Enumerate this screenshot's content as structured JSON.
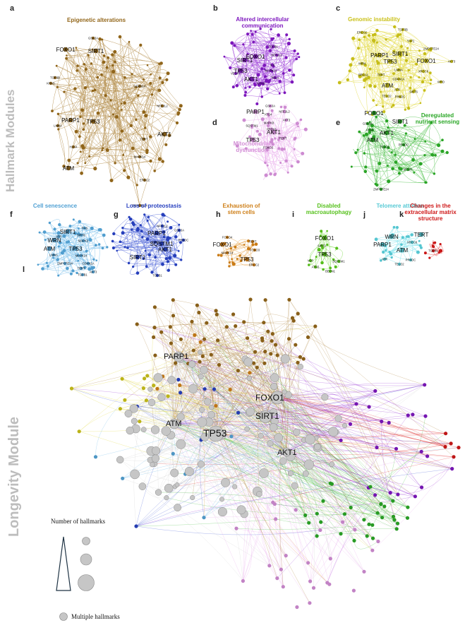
{
  "side_labels": {
    "hallmark": "Hallmark Modules",
    "longevity": "Longevity Module"
  },
  "colors": {
    "epigenetic": "#a0701d",
    "communication": "#8a1ad0",
    "genomic": "#dcd21c",
    "mitochondrial": "#e49ae8",
    "nutrient": "#2fb62a",
    "senescence": "#5ab0e6",
    "proteostasis": "#2a46d0",
    "stem_cells": "#e08a1a",
    "autophagy": "#5fd21f",
    "telomere": "#60dce8",
    "ecm": "#e01a1a",
    "multiple": "#c6c6c6",
    "multiple_edge": "#d7d7d7"
  },
  "panels": [
    {
      "letter": "a",
      "title": [
        "Epigenetic alterations"
      ],
      "color_key": "epigenetic",
      "big_labels": [
        "FOXO1",
        "SIRT1",
        "PARP1",
        "TP53",
        "ATM",
        "AKT1"
      ],
      "small_labels": [
        "GSK3A",
        "NFE2L2",
        "TOP3B",
        "ERCC2",
        "ZMPSTE24",
        "MAPK14",
        "CDKN1A",
        "KRAS",
        "TERT",
        "H2AX",
        "LMNA"
      ]
    },
    {
      "letter": "b",
      "title": [
        "Altered intercellular",
        "communication"
      ],
      "color_key": "communication",
      "big_labels": [
        "SIRT1",
        "FOXO1",
        "TP53",
        "AKT1"
      ],
      "small_labels": [
        "TGFB1",
        "NFE2L2",
        "IL6",
        "MAPK14",
        "VEGFA",
        "KRAS",
        "RELA"
      ]
    },
    {
      "letter": "c",
      "title": [
        "Genomic instability"
      ],
      "color_key": "genomic",
      "big_labels": [
        "PARP1",
        "SIRT1",
        "TP53",
        "FOXO1",
        "ATM"
      ],
      "small_labels": [
        "ERCC2",
        "TOP3B",
        "YAP1",
        "ZMPSTE24",
        "AKT3",
        "WRN",
        "BRCA1",
        "LMNA",
        "CDKN1A",
        "XRCC6",
        "WRD",
        "TERT",
        "ATR",
        "PRKDC",
        "SIRT6",
        "TELO2"
      ]
    },
    {
      "letter": "d",
      "title": [
        "Mitochondrial",
        "dysfunction"
      ],
      "color_key": "mitochondrial",
      "big_labels": [
        "PARP1",
        "AKT1",
        "TP53"
      ],
      "small_labels": [
        "GSK3A",
        "NFE2L2",
        "AKT3",
        "SQSTM1",
        "PRDX1",
        "TERT",
        "FOXO3",
        "MAPK8",
        "ATG4"
      ]
    },
    {
      "letter": "e",
      "title": [
        "Deregulated",
        "nutrient sensing"
      ],
      "color_key": "nutrient",
      "big_labels": [
        "FOXO1",
        "SIRT1",
        "AKT1",
        "ATM"
      ],
      "small_labels": [
        "GSK3A",
        "ATG5",
        "TELO2",
        "ZMPSTE24",
        "PRKDC",
        "MTOR"
      ]
    },
    {
      "letter": "f",
      "title": [
        "Cell senescence"
      ],
      "color_key": "senescence",
      "big_labels": [
        "SIRT1",
        "WRN",
        "ATM",
        "TP53"
      ],
      "small_labels": [
        "RAS",
        "ATR",
        "SIRT6",
        "MAPK3",
        "LMNA",
        "MAPK14",
        "CDKN1A",
        "ZMPSTE24",
        "TERT",
        "TGFB1",
        "AKT3"
      ]
    },
    {
      "letter": "g",
      "title": [
        "Loss of proteostasis"
      ],
      "color_key": "proteostasis",
      "big_labels": [
        "PARP1",
        "SQSTM1",
        "SIRT1",
        "AKT1"
      ],
      "small_labels": [
        "NFE2L2",
        "GSK3A",
        "ATG5",
        "PRKDC",
        "TGFB1"
      ]
    },
    {
      "letter": "h",
      "title": [
        "Exhaustion of",
        "stem cells"
      ],
      "color_key": "stem_cells",
      "big_labels": [
        "FOXO1",
        "TP53"
      ],
      "small_labels": [
        "FOXO4",
        "TERT",
        "MAPK14",
        "FOXO3",
        "ERCC2"
      ]
    },
    {
      "letter": "i",
      "title": [
        "Disabled",
        "macroautophagy"
      ],
      "color_key": "autophagy",
      "big_labels": [
        "FOXO1",
        "TP53"
      ],
      "small_labels": [
        "SIRT2",
        "VCP",
        "SQSTM1",
        "ATG5",
        "BECN1"
      ]
    },
    {
      "letter": "j",
      "title": [
        "Telomere attrition"
      ],
      "color_key": "telomere",
      "big_labels": [
        "WRN",
        "TERT",
        "PARP1",
        "ATM"
      ],
      "small_labels": [
        "XRCC6",
        "ATR",
        "PRKDC",
        "TELO2"
      ]
    },
    {
      "letter": "k",
      "title": [
        "Changes in the",
        "extracellular matrix",
        "structure"
      ],
      "color_key": "ecm",
      "big_labels": [],
      "small_labels": [
        "TGFB1"
      ]
    }
  ],
  "longevity": {
    "letter": "l",
    "labels": [
      "PARP1",
      "FOXO1",
      "SIRT1",
      "ATM",
      "TP53",
      "AKT1"
    ]
  },
  "legend": {
    "title": "Number of hallmarks",
    "multiple_label": "Multiple hallmarks"
  }
}
